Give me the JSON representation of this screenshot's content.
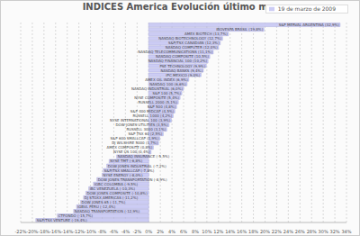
{
  "chart_data": {
    "type": "bar",
    "orientation": "horizontal",
    "title": "INDICES America Evolución último mes",
    "categories": [
      "S&P MERVAL ARGENTINA (32,9%)",
      "IBOVESPA BRASIL (19,8%)",
      "AMEX BIOTECH (13,7%)",
      "NASDAQ BIOTECHNOLOGY (12,7%)",
      "S&P/TSX CANADIAN (12,3%)",
      "NASDAQ COMPUTER (12,0%)",
      "NASDAQ TELECOMMUNICATIONS (11,1%)",
      "NASDAQ COMPOSITE (10,5%)",
      "NASDAQ FINANCIAL 100 (10,2%)",
      "PSE TECHNOLOGY (9,9%)",
      "NASDAQ BANKS (9,4%)",
      "IPC MEXICO (9,0%)",
      "AMEX OIL INDEX (6,9%)",
      "NASDAQ 100 (6,6%)",
      "NASDAQ INDUSTRIAL (6,0%)",
      "S&P 100 (5,7%)",
      "NYSE COMPOSITE (5,4%)",
      "RUSSELL 2000 (5,1%)",
      "S&P 500 (4,8%)",
      "S&P 400 MIDCAP (4,5%)",
      "RUSSELL 1000 (4,2%)",
      "NYSE INTERNATIONAL 100 (3,9%)",
      "DOW JONES UTILITIES (3,5%)",
      "RUSSELL 3000 (3,1%)",
      "S&P TSX 60 (2,5%)",
      "S&P 600 SMALLCAP (1,9%)",
      "DJ WILSHIRE 5000 (1,7%)",
      "AMEX COMPOSITE (0,8%)",
      "NYSE US 100 (0,4%)",
      "NASDAQ INSURANCE (-5,5%)",
      "NYSE TMT (-6,8%)",
      "DOW JONES INDUSTRIAL (-7,2%)",
      "S&P/TSX SMALLCAP (-7,8%)",
      "NYSE ENERGY (-8,0%)",
      "DOW JONES TRANSPORTATION (-8,9%)",
      "IGBC COLOMBIA (-9,5%)",
      "IBC VENEZUELA (-10,3%)",
      "DOW JONES COMPOSITE (-10,8%)",
      "DJ STOXX AMERICAS (-11,2%)",
      "DOW JONES 65 (-11,7%)",
      "IGBVL PERU (-12,4%)",
      "NASDAQ TRANSPORTATION (-12,9%)",
      "CTFONDO (-15,7%)",
      "S&P/TSX VENTURE (-19,4%)"
    ],
    "series": [
      {
        "name": "19 de marzo de 2009",
        "color": "#ccccf4",
        "values": [
          32.9,
          19.8,
          13.7,
          12.7,
          12.3,
          12.0,
          11.1,
          10.5,
          10.2,
          9.9,
          9.4,
          9.0,
          6.9,
          6.6,
          6.0,
          5.7,
          5.4,
          5.1,
          4.8,
          4.5,
          4.2,
          3.9,
          3.5,
          3.1,
          2.5,
          1.9,
          1.7,
          0.8,
          0.4,
          -5.5,
          -6.8,
          -7.2,
          -7.8,
          -8.0,
          -8.9,
          -9.5,
          -10.3,
          -10.8,
          -11.2,
          -11.7,
          -12.4,
          -12.9,
          -15.7,
          -19.4
        ]
      }
    ],
    "xlim": [
      -22,
      34
    ],
    "xticks": [
      {
        "value": -22,
        "label": "-22%"
      },
      {
        "value": -20,
        "label": "-20%"
      },
      {
        "value": -18,
        "label": "-18%"
      },
      {
        "value": -16,
        "label": "-16%"
      },
      {
        "value": -14,
        "label": "-14%"
      },
      {
        "value": -12,
        "label": "-12%"
      },
      {
        "value": -10,
        "label": "-10%"
      },
      {
        "value": -8,
        "label": "-8%"
      },
      {
        "value": -6,
        "label": "-6%"
      },
      {
        "value": -4,
        "label": "-4%"
      },
      {
        "value": -2,
        "label": "-2%"
      },
      {
        "value": 0,
        "label": "0%"
      },
      {
        "value": 2,
        "label": "2%"
      },
      {
        "value": 4,
        "label": "4%"
      },
      {
        "value": 6,
        "label": "6%"
      },
      {
        "value": 8,
        "label": "8%"
      },
      {
        "value": 10,
        "label": "10%"
      },
      {
        "value": 12,
        "label": "12%"
      },
      {
        "value": 14,
        "label": "14%"
      },
      {
        "value": 16,
        "label": "16%"
      },
      {
        "value": 18,
        "label": "18%"
      },
      {
        "value": 20,
        "label": "20%"
      },
      {
        "value": 22,
        "label": "22%"
      },
      {
        "value": 24,
        "label": "24%"
      },
      {
        "value": 26,
        "label": "26%"
      },
      {
        "value": 28,
        "label": "28%"
      },
      {
        "value": 30,
        "label": "30%"
      },
      {
        "value": 32,
        "label": "32%"
      },
      {
        "value": 34,
        "label": "34%"
      }
    ],
    "grid": true,
    "legend": "top right",
    "tick_labels": "x"
  }
}
